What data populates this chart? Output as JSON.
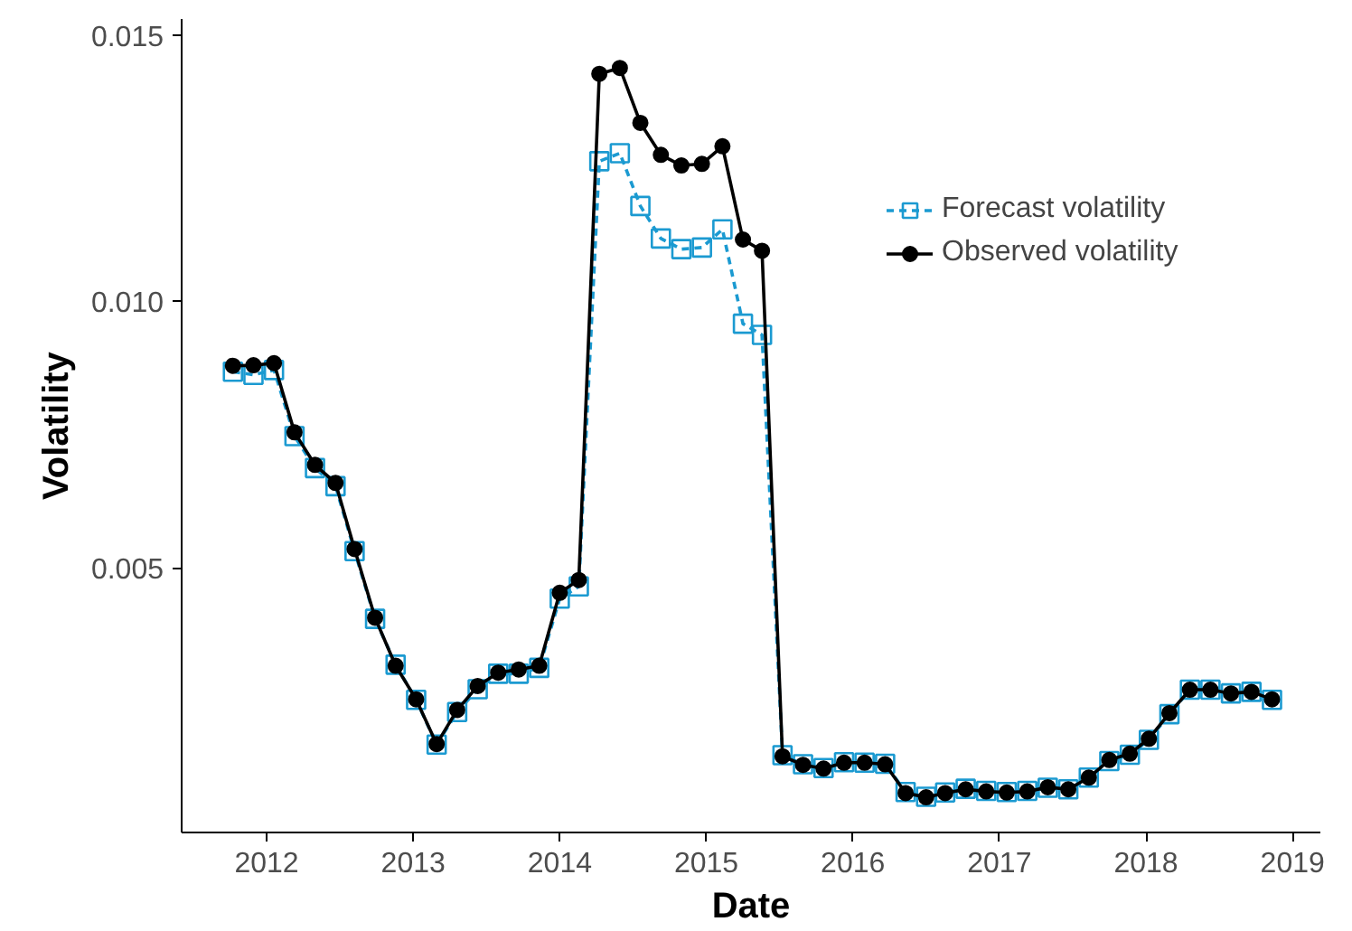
{
  "chart_data": {
    "type": "line",
    "xlabel": "Date",
    "ylabel": "Volatility",
    "x": [
      2011.77,
      2011.91,
      2012.05,
      2012.19,
      2012.33,
      2012.47,
      2012.6,
      2012.74,
      2012.88,
      2013.02,
      2013.16,
      2013.3,
      2013.44,
      2013.58,
      2013.72,
      2013.86,
      2014.0,
      2014.13,
      2014.27,
      2014.41,
      2014.55,
      2014.69,
      2014.83,
      2014.97,
      2015.11,
      2015.25,
      2015.38,
      2015.52,
      2015.66,
      2015.8,
      2015.94,
      2016.08,
      2016.22,
      2016.36,
      2016.5,
      2016.63,
      2016.77,
      2016.91,
      2017.05,
      2017.19,
      2017.33,
      2017.47,
      2017.61,
      2017.75,
      2017.89,
      2018.02,
      2018.16,
      2018.3,
      2018.44,
      2018.58,
      2018.72,
      2018.86
    ],
    "series": [
      {
        "name": "Forecast volatility",
        "color": "#1b9ad1",
        "marker": "square",
        "line_style": "dashed",
        "values": [
          0.00868,
          0.00862,
          0.00871,
          0.00747,
          0.00687,
          0.00653,
          0.00531,
          0.00404,
          0.00318,
          0.00252,
          0.00168,
          0.00229,
          0.00272,
          0.00301,
          0.00301,
          0.00312,
          0.00442,
          0.00465,
          0.01263,
          0.01278,
          0.01179,
          0.01118,
          0.01098,
          0.01101,
          0.01135,
          0.00958,
          0.00937,
          0.00148,
          0.00131,
          0.00124,
          0.00135,
          0.00134,
          0.00132,
          0.00079,
          0.0007,
          0.00078,
          0.00085,
          0.00081,
          0.00079,
          0.00081,
          0.00087,
          0.00084,
          0.00106,
          0.00137,
          0.00149,
          0.00177,
          0.00225,
          0.00271,
          0.00271,
          0.00264,
          0.00267,
          0.00252
        ]
      },
      {
        "name": "Observed volatility",
        "color": "#000000",
        "marker": "circle",
        "line_style": "solid",
        "values": [
          0.00879,
          0.0088,
          0.00884,
          0.00754,
          0.00693,
          0.00659,
          0.00535,
          0.00406,
          0.00316,
          0.00253,
          0.00169,
          0.00233,
          0.00278,
          0.00303,
          0.00309,
          0.00316,
          0.00453,
          0.00477,
          0.01427,
          0.01438,
          0.01335,
          0.01275,
          0.01255,
          0.01258,
          0.01291,
          0.01116,
          0.01095,
          0.00146,
          0.0013,
          0.00123,
          0.00134,
          0.00134,
          0.00131,
          0.00077,
          0.00069,
          0.00077,
          0.00084,
          0.0008,
          0.00078,
          0.0008,
          0.00088,
          0.00084,
          0.00106,
          0.00139,
          0.00151,
          0.00179,
          0.00227,
          0.00271,
          0.00271,
          0.00264,
          0.00267,
          0.00253
        ]
      }
    ],
    "xlim": [
      2011.42,
      2019.19
    ],
    "xticks": [
      2012,
      2013,
      2014,
      2015,
      2016,
      2017,
      2018,
      2019
    ],
    "ylim": [
      3e-05,
      0.0153
    ],
    "yticks": [
      {
        "value": 0.005,
        "label": "0.005"
      },
      {
        "value": 0.01,
        "label": "0.010"
      },
      {
        "value": 0.015,
        "label": "0.015"
      }
    ],
    "grid": false,
    "legend": "top right"
  }
}
